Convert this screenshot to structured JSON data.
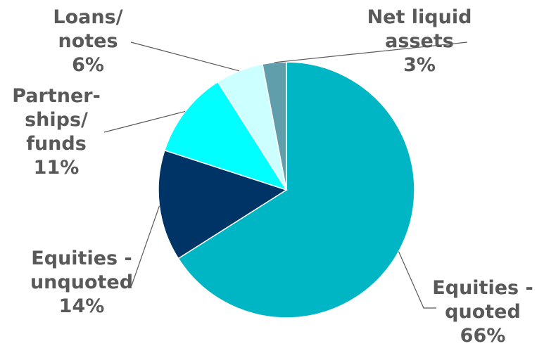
{
  "chart_data": {
    "type": "pie",
    "title": "",
    "slices": [
      {
        "label_lines": [
          "Equities -",
          "quoted"
        ],
        "value": 66,
        "value_label": "66%",
        "color": "#00B5C4"
      },
      {
        "label_lines": [
          "Equities -",
          "unquoted"
        ],
        "value": 14,
        "value_label": "14%",
        "color": "#003366"
      },
      {
        "label_lines": [
          "Partner-",
          "ships/",
          "funds"
        ],
        "value": 11,
        "value_label": "11%",
        "color": "#00FFFF"
      },
      {
        "label_lines": [
          "Loans/",
          "notes"
        ],
        "value": 6,
        "value_label": "6%",
        "color": "#CCFFFF"
      },
      {
        "label_lines": [
          "Net liquid",
          "assets"
        ],
        "value": 3,
        "value_label": "3%",
        "color": "#5F9EAA"
      }
    ],
    "legend": "none",
    "grid": false
  }
}
